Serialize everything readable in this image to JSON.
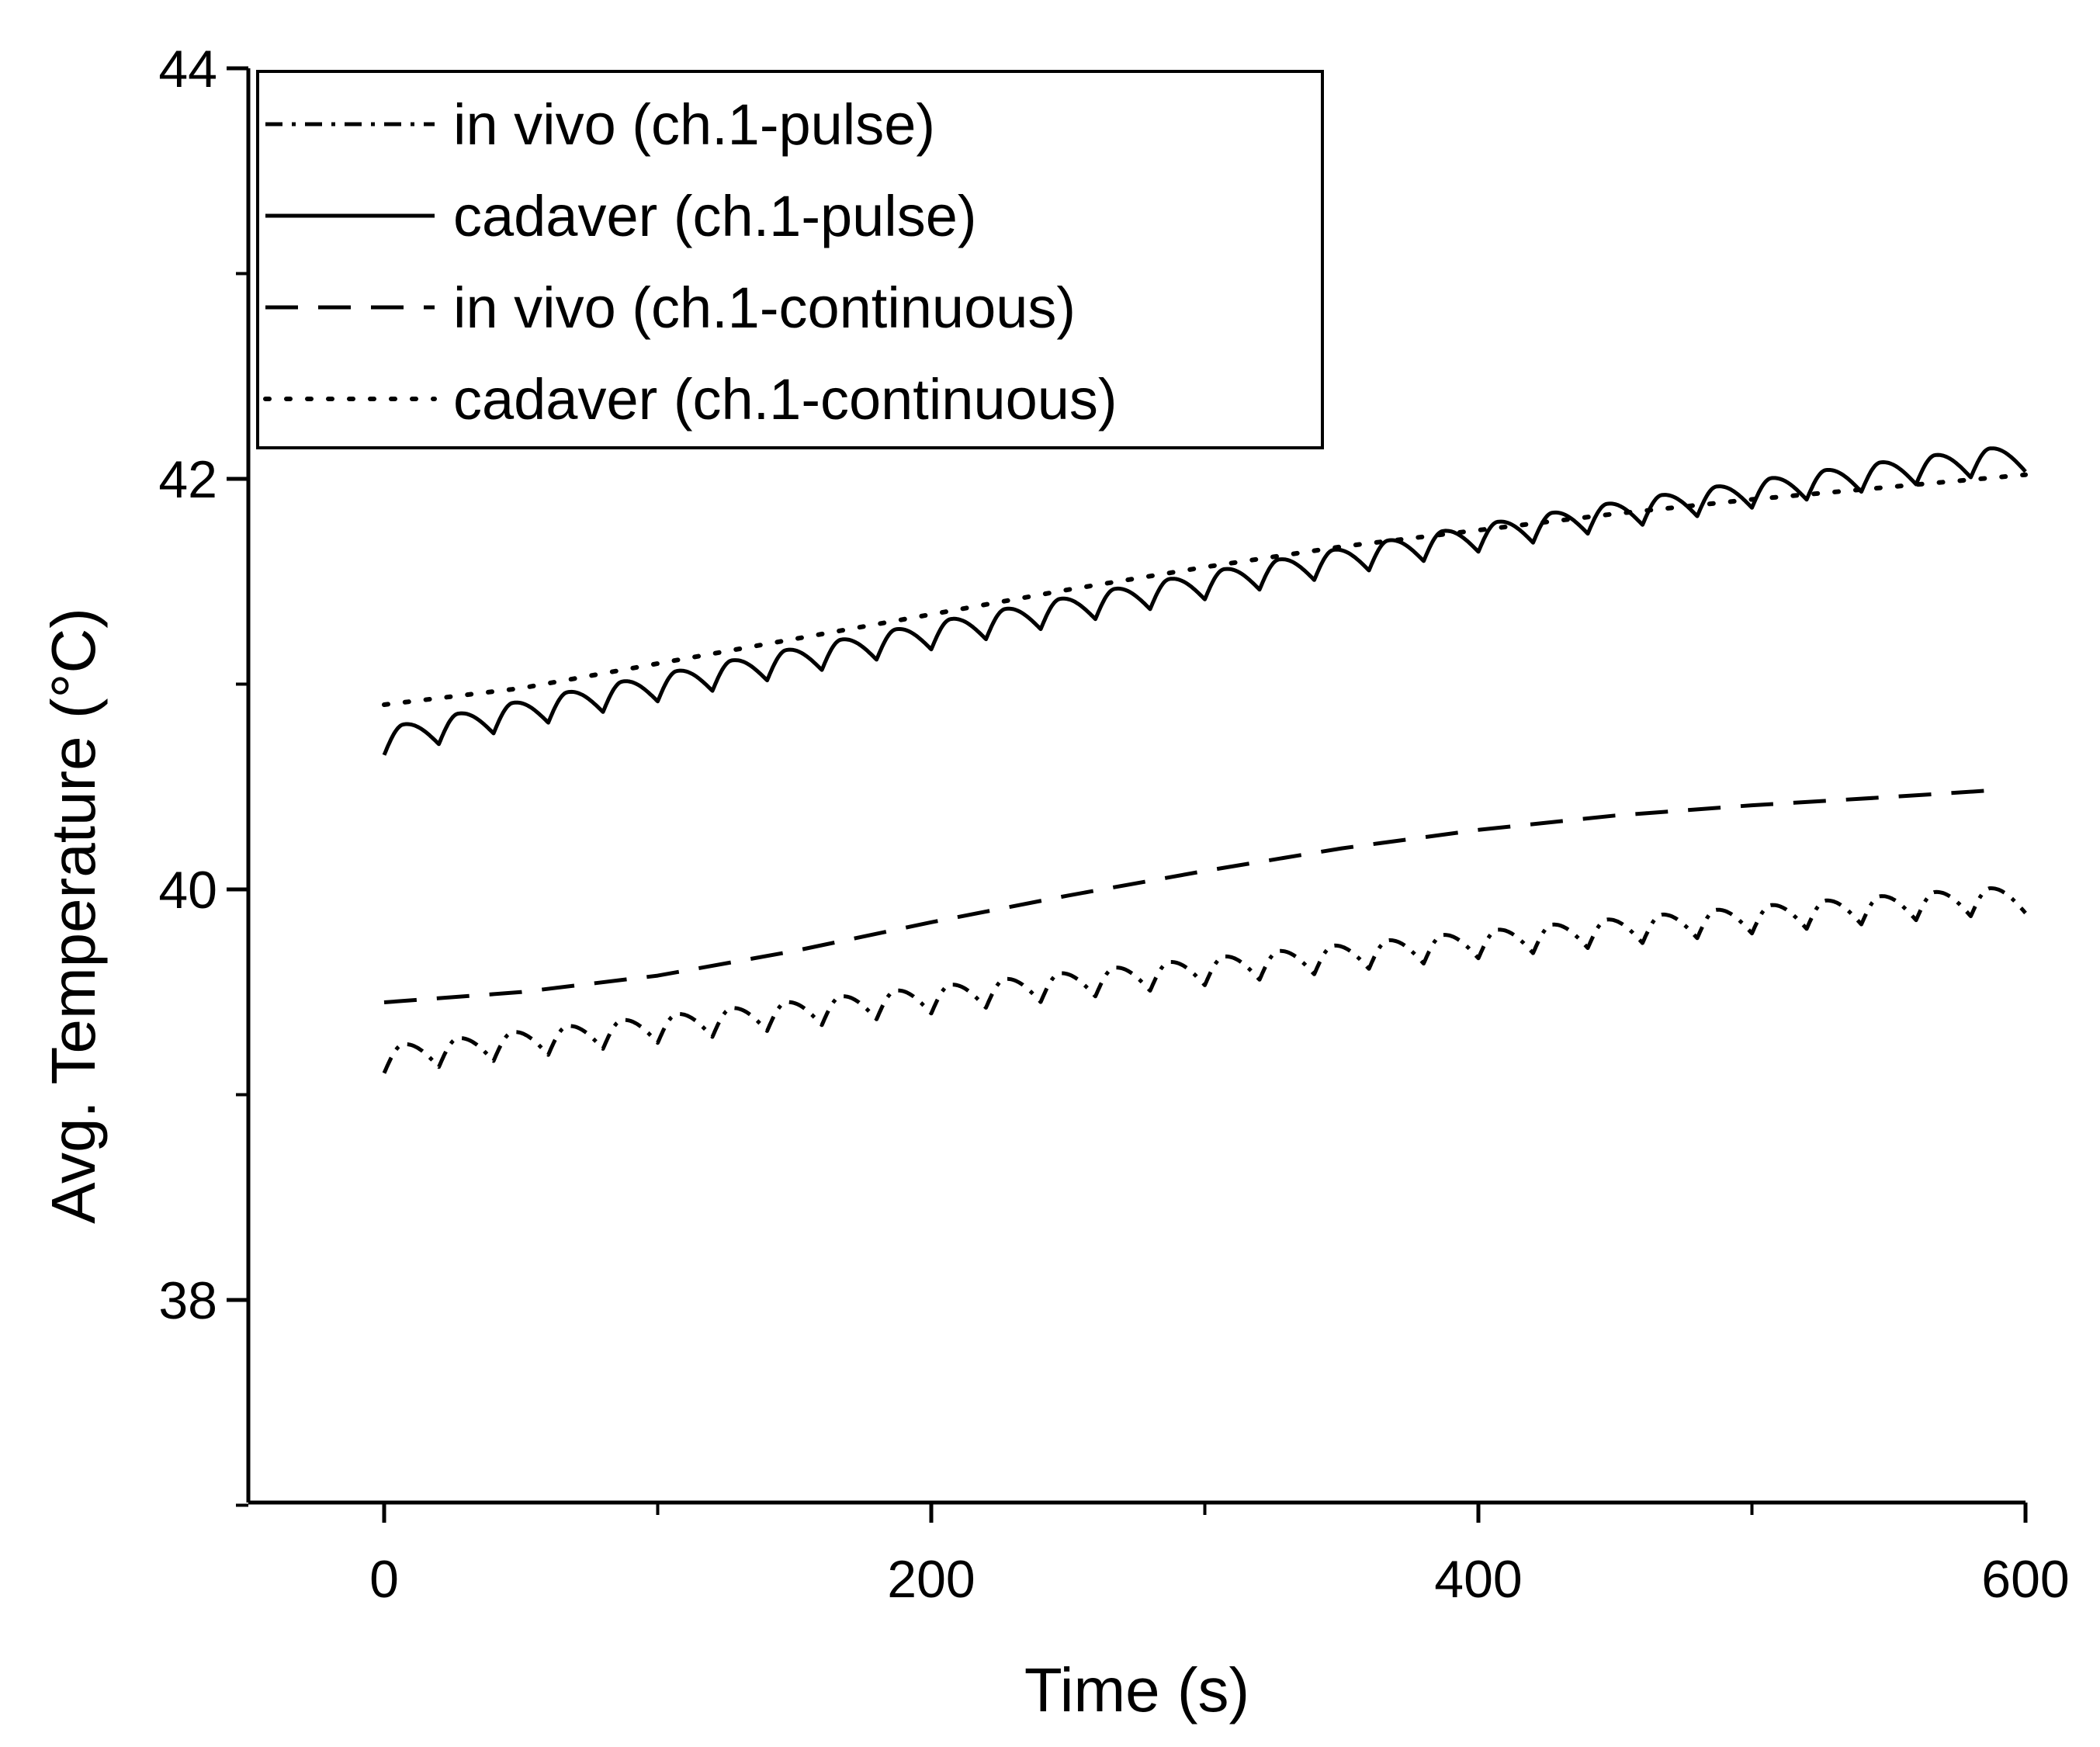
{
  "chart_data": {
    "type": "line",
    "title": "",
    "xlabel": "Time (s)",
    "ylabel": "Avg. Temperature  (°C)",
    "xlim": [
      -50,
      600
    ],
    "ylim": [
      37,
      44
    ],
    "x_ticks": [
      0,
      200,
      400,
      600
    ],
    "x_tick_labels": [
      "0",
      "200",
      "400",
      "600"
    ],
    "x_minor_ticks": [
      100,
      300,
      500
    ],
    "y_ticks": [
      38,
      40,
      42,
      44
    ],
    "y_tick_labels": [
      "38",
      "40",
      "42",
      "44"
    ],
    "y_minor_ticks": [
      37,
      39,
      41,
      43
    ],
    "grid": false,
    "legend_position": "top-left",
    "series": [
      {
        "name": "in vivo (ch.1-pulse)",
        "style": "dash-dot",
        "color": "#000000",
        "x_range": [
          0,
          600
        ],
        "start": 39.17,
        "end": 39.95,
        "pulse_period_s": 20,
        "pulse_amplitude": 0.13
      },
      {
        "name": "cadaver (ch.1-pulse)",
        "style": "solid",
        "color": "#000000",
        "x_range": [
          0,
          600
        ],
        "start": 40.72,
        "end": 42.1,
        "pulse_period_s": 20,
        "pulse_amplitude": 0.13
      },
      {
        "name": "in vivo (ch.1-continuous)",
        "style": "dashed",
        "color": "#000000",
        "x": [
          0,
          50,
          100,
          150,
          200,
          250,
          300,
          350,
          400,
          450,
          500,
          550,
          585
        ],
        "y": [
          39.45,
          39.5,
          39.58,
          39.7,
          39.84,
          39.97,
          40.09,
          40.2,
          40.29,
          40.36,
          40.41,
          40.45,
          40.48
        ]
      },
      {
        "name": "cadaver (ch.1-continuous)",
        "style": "dotted",
        "color": "#000000",
        "x": [
          0,
          50,
          100,
          150,
          200,
          250,
          300,
          350,
          400,
          450,
          500,
          550,
          600
        ],
        "y": [
          40.9,
          40.98,
          41.1,
          41.22,
          41.34,
          41.46,
          41.57,
          41.67,
          41.75,
          41.83,
          41.9,
          41.96,
          42.02
        ]
      }
    ]
  }
}
